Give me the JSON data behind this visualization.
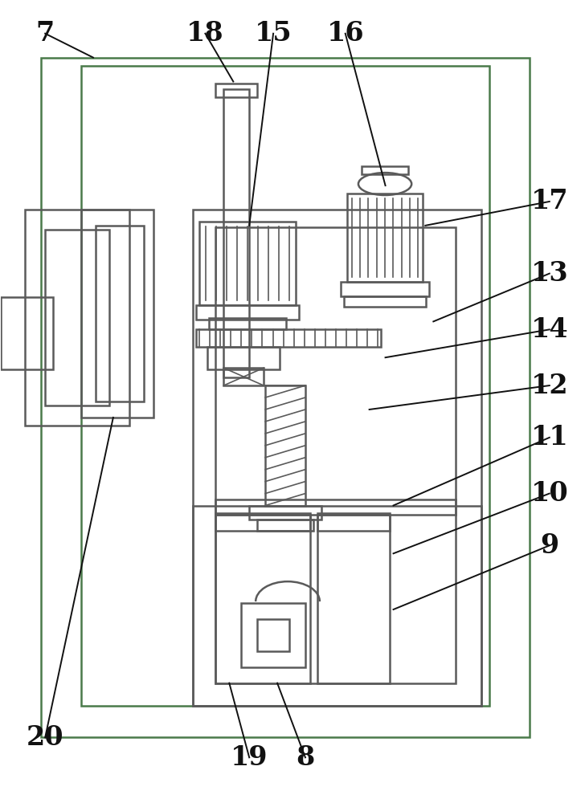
{
  "bg_color": "#ffffff",
  "lc": "#5a5a5a",
  "lc_green": "#4a7a4a",
  "lw": 1.8,
  "lw_t": 1.2,
  "lw_ann": 1.4,
  "label_fontsize": 24,
  "label_color": "#111111"
}
